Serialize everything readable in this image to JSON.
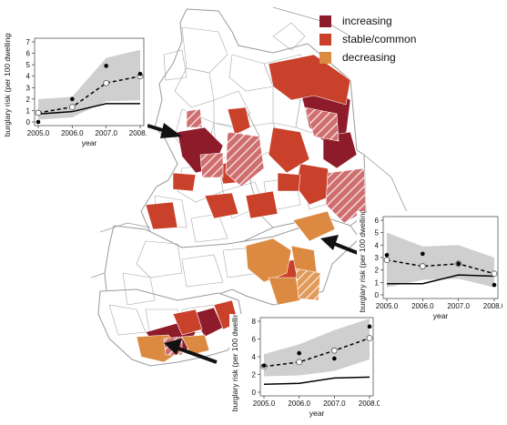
{
  "legend": {
    "items": [
      {
        "label": "increasing",
        "color": "#8e1b2a"
      },
      {
        "label": "stable/common",
        "color": "#c9412a"
      },
      {
        "label": "decreasing",
        "color": "#dc8a42"
      }
    ]
  },
  "chart_data": [
    {
      "type": "line",
      "xlabel": "year",
      "ylabel": "burglary risk (per 100 dwellings)",
      "x": [
        2005.0,
        2006.0,
        2007.0,
        2008.0
      ],
      "xticks": [
        "2005.0",
        "2006.0",
        "2007.0",
        "2008.0"
      ],
      "ylim": [
        0,
        7
      ],
      "yticks": [
        "0",
        "1",
        "2",
        "3",
        "4",
        "5",
        "6",
        "7"
      ],
      "band_low": [
        0.2,
        0.4,
        1.8,
        1.9
      ],
      "band_high": [
        2.0,
        2.2,
        5.6,
        6.3
      ],
      "series": [
        {
          "style": "dashed-open-circles",
          "values": [
            0.8,
            1.3,
            3.4,
            4.0
          ]
        },
        {
          "style": "solid",
          "values": [
            0.7,
            0.9,
            1.6,
            1.6
          ]
        },
        {
          "style": "observed-points",
          "values": [
            0.0,
            2.0,
            4.9,
            4.2
          ]
        }
      ]
    },
    {
      "type": "line",
      "xlabel": "year",
      "ylabel": "burglary risk (per 100 dwellings)",
      "x": [
        2005.0,
        2006.0,
        2007.0,
        2008.0
      ],
      "xticks": [
        "2005.0",
        "2006.0",
        "2007.0",
        "2008.0"
      ],
      "ylim": [
        0,
        6
      ],
      "yticks": [
        "0",
        "1",
        "2",
        "3",
        "4",
        "5",
        "6"
      ],
      "band_low": [
        0.6,
        1.2,
        1.3,
        0.6
      ],
      "band_high": [
        5.0,
        3.9,
        4.0,
        3.0
      ],
      "series": [
        {
          "style": "dashed-open-circles",
          "values": [
            2.8,
            2.3,
            2.5,
            1.7
          ]
        },
        {
          "style": "solid",
          "values": [
            0.9,
            0.9,
            1.6,
            1.5
          ]
        },
        {
          "style": "observed-points",
          "values": [
            3.2,
            3.3,
            2.5,
            0.8
          ]
        }
      ]
    },
    {
      "type": "line",
      "xlabel": "year",
      "ylabel": "burglary risk (per 100 dwellings)",
      "x": [
        2005.0,
        2006.0,
        2007.0,
        2008.0
      ],
      "xticks": [
        "2005.0",
        "2006.0",
        "2007.0",
        "2008.0"
      ],
      "ylim": [
        0,
        8
      ],
      "yticks": [
        "0",
        "2",
        "4",
        "6",
        "8"
      ],
      "band_low": [
        1.8,
        1.9,
        2.4,
        3.7
      ],
      "band_high": [
        4.3,
        5.4,
        7.0,
        8.3
      ],
      "series": [
        {
          "style": "dashed-open-circles",
          "values": [
            2.9,
            3.4,
            4.7,
            6.1
          ]
        },
        {
          "style": "solid",
          "values": [
            0.9,
            1.0,
            1.6,
            1.7
          ]
        },
        {
          "style": "observed-points",
          "values": [
            3.0,
            4.4,
            3.8,
            7.4
          ]
        }
      ]
    }
  ]
}
